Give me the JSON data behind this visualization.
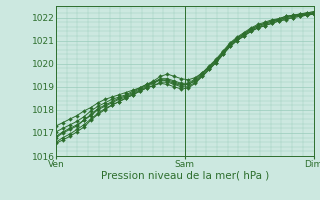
{
  "background_color": "#cce8e0",
  "plot_bg_color": "#cce8e0",
  "grid_color": "#99ccbb",
  "line_color": "#2d6e2d",
  "marker_color": "#2d6e2d",
  "xlabel": "Pression niveau de la mer( hPa )",
  "xlim": [
    0,
    48
  ],
  "ylim": [
    1016,
    1022.5
  ],
  "yticks": [
    1016,
    1017,
    1018,
    1019,
    1020,
    1021,
    1022
  ],
  "xtick_labels": [
    "Ven",
    "Sam",
    "Dim"
  ],
  "xtick_positions": [
    0,
    24,
    48
  ],
  "series": [
    [
      1016.8,
      1017.0,
      1017.15,
      1017.3,
      1017.55,
      1017.8,
      1018.05,
      1018.2,
      1018.35,
      1018.5,
      1018.6,
      1018.75,
      1018.9,
      1019.05,
      1019.2,
      1019.3,
      1019.25,
      1019.15,
      1019.05,
      1019.1,
      1019.3,
      1019.55,
      1019.85,
      1020.15,
      1020.5,
      1020.85,
      1021.1,
      1021.3,
      1021.5,
      1021.65,
      1021.75,
      1021.85,
      1021.9,
      1022.0,
      1022.05,
      1022.1,
      1022.15,
      1022.2
    ],
    [
      1016.55,
      1016.7,
      1016.85,
      1017.05,
      1017.25,
      1017.55,
      1017.8,
      1018.0,
      1018.2,
      1018.35,
      1018.5,
      1018.65,
      1018.8,
      1018.95,
      1019.05,
      1019.15,
      1019.1,
      1019.0,
      1018.9,
      1018.95,
      1019.15,
      1019.45,
      1019.75,
      1020.05,
      1020.4,
      1020.75,
      1021.0,
      1021.2,
      1021.4,
      1021.55,
      1021.65,
      1021.75,
      1021.85,
      1021.9,
      1022.0,
      1022.05,
      1022.1,
      1022.15
    ],
    [
      1017.05,
      1017.2,
      1017.35,
      1017.5,
      1017.7,
      1017.95,
      1018.15,
      1018.3,
      1018.45,
      1018.55,
      1018.65,
      1018.8,
      1018.95,
      1019.1,
      1019.2,
      1019.35,
      1019.35,
      1019.25,
      1019.15,
      1019.15,
      1019.35,
      1019.6,
      1019.9,
      1020.2,
      1020.55,
      1020.9,
      1021.15,
      1021.35,
      1021.55,
      1021.7,
      1021.8,
      1021.9,
      1021.95,
      1022.05,
      1022.1,
      1022.15,
      1022.2,
      1022.25
    ],
    [
      1017.3,
      1017.45,
      1017.6,
      1017.75,
      1017.95,
      1018.1,
      1018.3,
      1018.45,
      1018.55,
      1018.65,
      1018.75,
      1018.85,
      1018.95,
      1019.1,
      1019.25,
      1019.45,
      1019.55,
      1019.45,
      1019.35,
      1019.3,
      1019.4,
      1019.6,
      1019.85,
      1020.15,
      1020.5,
      1020.85,
      1021.1,
      1021.3,
      1021.5,
      1021.65,
      1021.75,
      1021.85,
      1021.95,
      1022.05,
      1022.1,
      1022.15,
      1022.2,
      1022.25
    ],
    [
      1016.85,
      1017.05,
      1017.2,
      1017.35,
      1017.55,
      1017.75,
      1018.0,
      1018.15,
      1018.3,
      1018.45,
      1018.55,
      1018.7,
      1018.85,
      1019.0,
      1019.15,
      1019.3,
      1019.3,
      1019.2,
      1019.1,
      1019.1,
      1019.25,
      1019.5,
      1019.8,
      1020.1,
      1020.45,
      1020.8,
      1021.05,
      1021.25,
      1021.45,
      1021.6,
      1021.7,
      1021.8,
      1021.9,
      1022.0,
      1022.05,
      1022.1,
      1022.15,
      1022.2
    ],
    [
      1016.6,
      1016.8,
      1016.95,
      1017.15,
      1017.35,
      1017.6,
      1017.85,
      1018.05,
      1018.2,
      1018.35,
      1018.5,
      1018.65,
      1018.8,
      1018.95,
      1019.05,
      1019.2,
      1019.2,
      1019.1,
      1019.0,
      1019.0,
      1019.2,
      1019.45,
      1019.75,
      1020.05,
      1020.4,
      1020.75,
      1021.0,
      1021.2,
      1021.4,
      1021.55,
      1021.65,
      1021.75,
      1021.85,
      1021.95,
      1022.0,
      1022.05,
      1022.1,
      1022.15
    ]
  ]
}
